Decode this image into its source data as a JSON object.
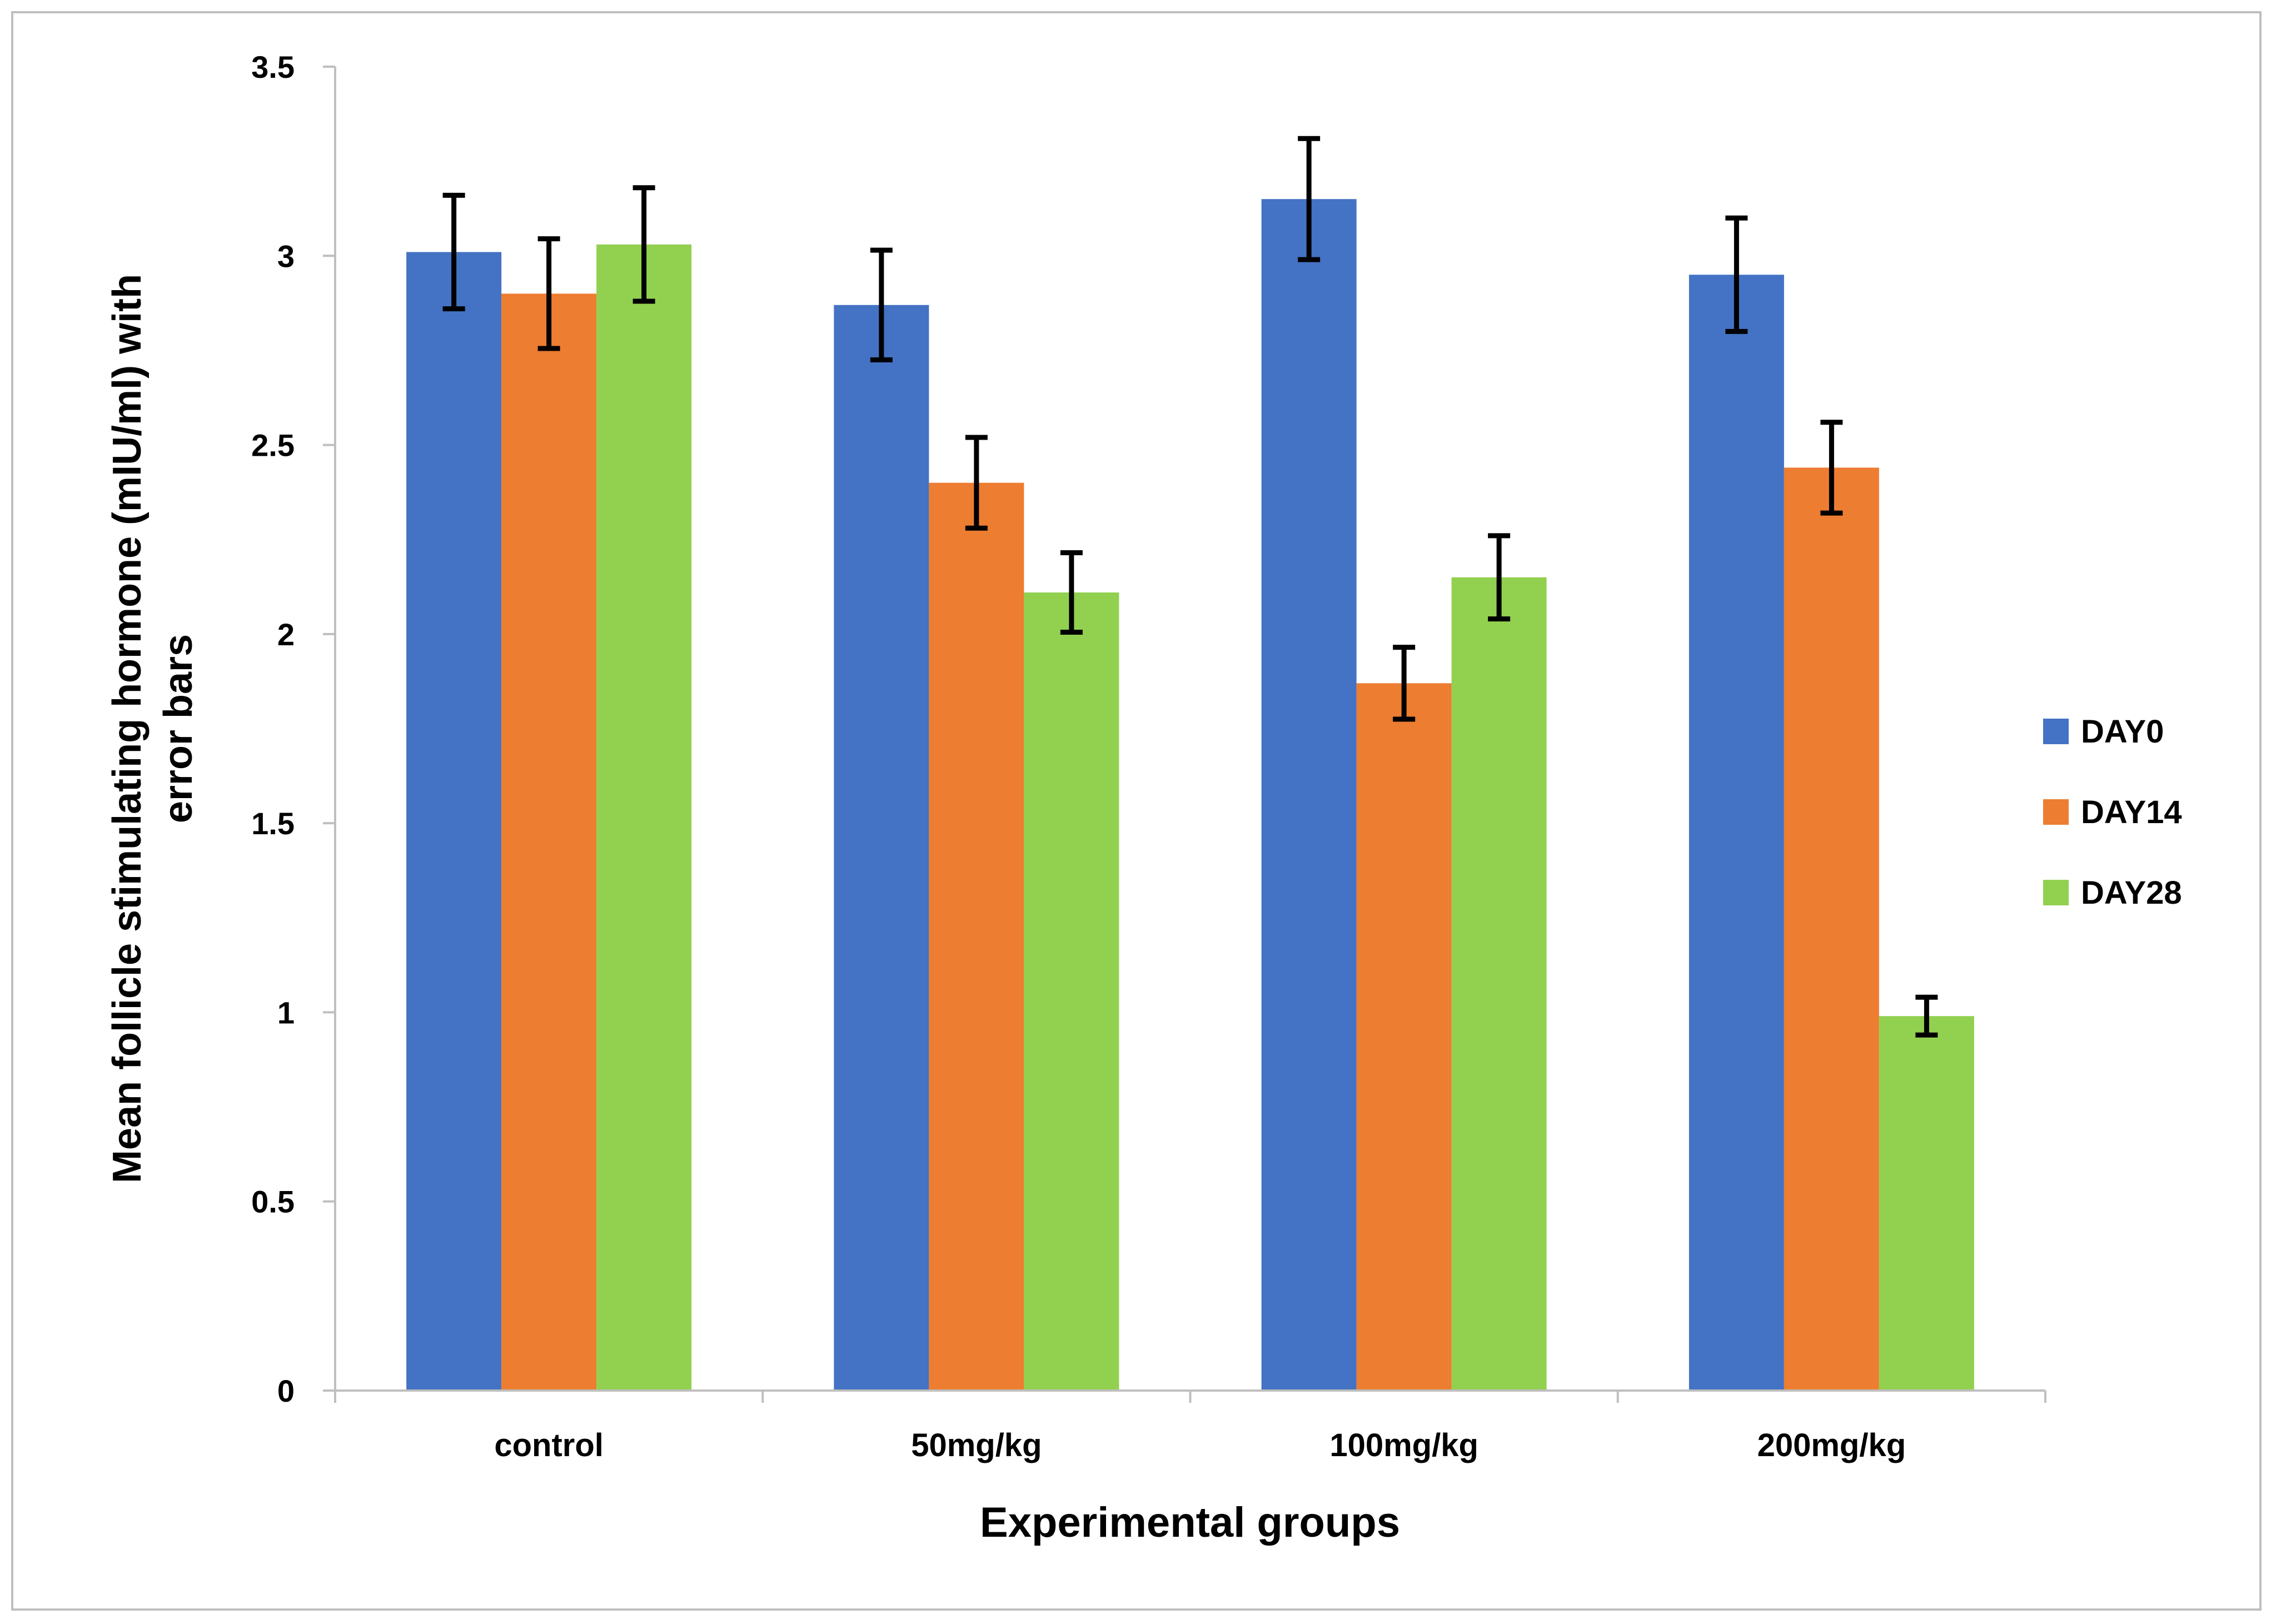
{
  "chart_data": {
    "type": "bar",
    "title": "",
    "xlabel": "Experimental groups",
    "ylabel_lines": [
      "Mean follicle stimulating hormone (mIU/ml) with",
      "error bars"
    ],
    "ylim": [
      0,
      3.5
    ],
    "yticks": [
      0,
      0.5,
      1,
      1.5,
      2,
      2.5,
      3,
      3.5
    ],
    "ytick_labels": [
      "0",
      "0.5",
      "1",
      "1.5",
      "2",
      "2.5",
      "3",
      "3.5"
    ],
    "categories": [
      "control",
      "50mg/kg",
      "100mg/kg",
      "200mg/kg"
    ],
    "series": [
      {
        "name": "DAY0",
        "color": "#4472c4",
        "values": [
          3.01,
          2.87,
          3.15,
          2.95
        ],
        "errors": [
          0.15,
          0.145,
          0.16,
          0.15
        ]
      },
      {
        "name": "DAY14",
        "color": "#ed7d31",
        "values": [
          2.9,
          2.4,
          1.87,
          2.44
        ],
        "errors": [
          0.145,
          0.12,
          0.095,
          0.12
        ]
      },
      {
        "name": "DAY28",
        "color": "#92d050",
        "values": [
          3.03,
          2.11,
          2.15,
          0.99
        ],
        "errors": [
          0.15,
          0.105,
          0.11,
          0.05
        ]
      }
    ],
    "grid": false,
    "legend_position": "right"
  }
}
